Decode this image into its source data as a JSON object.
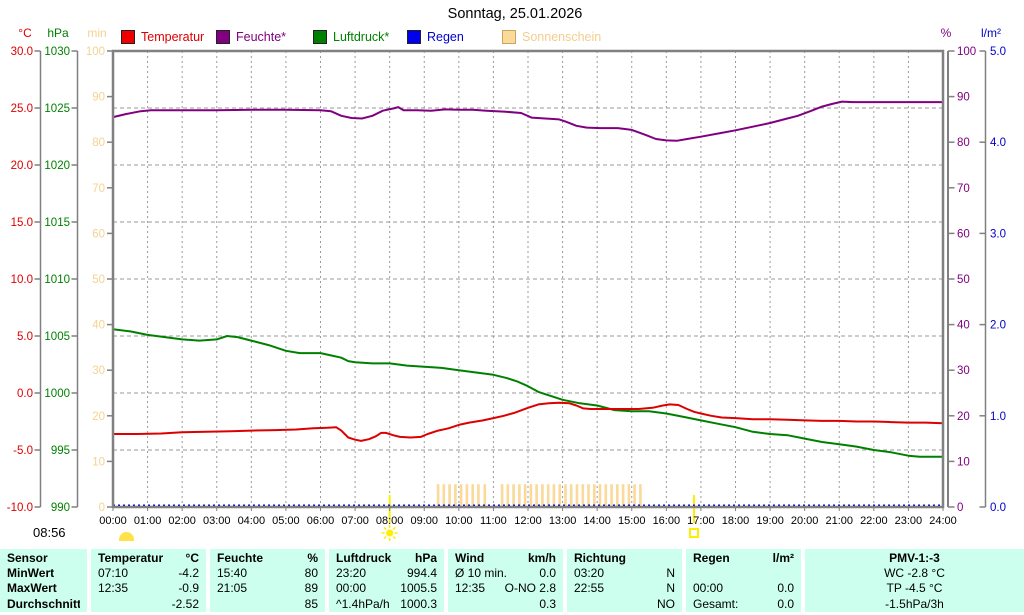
{
  "title": "Sonntag, 25.01.2026",
  "footer_time": "08:56",
  "legend": [
    {
      "label": "Temperatur",
      "text_color": "#dd0000",
      "fill": "#ee0000",
      "border": "#222222"
    },
    {
      "label": "Feuchte*",
      "text_color": "#800080",
      "fill": "#800080",
      "border": "#222222"
    },
    {
      "label": "Luftdruck*",
      "text_color": "#008000",
      "fill": "#008000",
      "border": "#222222"
    },
    {
      "label": "Regen",
      "text_color": "#0000cc",
      "fill": "#0000ee",
      "border": "#222222"
    },
    {
      "label": "Sonnenschein",
      "text_color": "#f3cd8e",
      "fill": "#fbd99b",
      "border": "#caa35c"
    }
  ],
  "chart_data": {
    "type": "line",
    "title": "Sonntag, 25.01.2026",
    "grid": true,
    "x_axis": {
      "label": "time",
      "range_hours": [
        0,
        24
      ],
      "tick_labels": [
        "00:00",
        "01:00",
        "02:00",
        "03:00",
        "04:00",
        "05:00",
        "06:00",
        "07:00",
        "08:00",
        "09:00",
        "10:00",
        "11:00",
        "12:00",
        "13:00",
        "14:00",
        "15:00",
        "16:00",
        "17:00",
        "18:00",
        "19:00",
        "20:00",
        "21:00",
        "22:00",
        "23:00",
        "24:00"
      ]
    },
    "y_axes": {
      "celsius": {
        "label": "°C",
        "color": "#dd0000",
        "min": -10,
        "max": 30,
        "ticks": [
          "30.0",
          "25.0",
          "20.0",
          "15.0",
          "10.0",
          "5.0",
          "0.0",
          "-5.0",
          "-10.0"
        ]
      },
      "hpa": {
        "label": "hPa",
        "color": "#008000",
        "min": 990,
        "max": 1030,
        "ticks": [
          "1030",
          "1025",
          "1020",
          "1015",
          "1010",
          "1005",
          "1000",
          "995",
          "990"
        ]
      },
      "minutes": {
        "label": "min",
        "color": "#f3d391",
        "min": 0,
        "max": 100,
        "ticks": [
          "100",
          "90",
          "80",
          "70",
          "60",
          "50",
          "40",
          "30",
          "20",
          "10",
          "0"
        ]
      },
      "percent": {
        "label": "%",
        "color": "#800080",
        "min": 0,
        "max": 100,
        "ticks": [
          "100",
          "90",
          "80",
          "70",
          "60",
          "50",
          "40",
          "30",
          "20",
          "10",
          "0"
        ]
      },
      "lm2": {
        "label": "l/m²",
        "color": "#0000cc",
        "min": 0,
        "max": 5,
        "ticks": [
          "5.0",
          "4.0",
          "3.0",
          "2.0",
          "1.0",
          "0.0"
        ]
      }
    },
    "series": [
      {
        "name": "Sonnenschein",
        "unit": "min",
        "axis": "minutes",
        "color": "#fbd99b",
        "type": "bars",
        "slot_minutes": 10,
        "bar_minutes": 5,
        "intervals": [
          [
            9.4,
            10.65
          ],
          [
            10.75,
            10.88
          ],
          [
            11.25,
            15.28
          ]
        ]
      },
      {
        "name": "Regen",
        "unit": "l/m²",
        "axis": "lm2",
        "color": "#0000cc",
        "style": "dotted",
        "constant_value": 0
      },
      {
        "name": "Luftdruck*",
        "unit": "hPa",
        "axis": "hpa",
        "color": "#008000",
        "points": [
          [
            0,
            1005.6
          ],
          [
            0.5,
            1005.4
          ],
          [
            1,
            1005.1
          ],
          [
            1.5,
            1004.9
          ],
          [
            2,
            1004.7
          ],
          [
            2.5,
            1004.6
          ],
          [
            3,
            1004.7
          ],
          [
            3.3,
            1005.0
          ],
          [
            3.6,
            1004.9
          ],
          [
            4,
            1004.6
          ],
          [
            4.5,
            1004.2
          ],
          [
            5,
            1003.7
          ],
          [
            5.4,
            1003.5
          ],
          [
            6,
            1003.5
          ],
          [
            6.3,
            1003.3
          ],
          [
            6.6,
            1003.1
          ],
          [
            6.8,
            1002.8
          ],
          [
            7,
            1002.7
          ],
          [
            7.5,
            1002.6
          ],
          [
            8,
            1002.6
          ],
          [
            8.5,
            1002.4
          ],
          [
            9,
            1002.3
          ],
          [
            9.5,
            1002.2
          ],
          [
            10,
            1002.0
          ],
          [
            10.5,
            1001.8
          ],
          [
            11,
            1001.6
          ],
          [
            11.4,
            1001.3
          ],
          [
            11.7,
            1001.0
          ],
          [
            12,
            1000.6
          ],
          [
            12.3,
            1000.1
          ],
          [
            12.6,
            999.8
          ],
          [
            13,
            999.4
          ],
          [
            13.5,
            999.1
          ],
          [
            14,
            998.9
          ],
          [
            14.5,
            998.5
          ],
          [
            15,
            998.4
          ],
          [
            15.5,
            998.4
          ],
          [
            16,
            998.2
          ],
          [
            16.5,
            997.9
          ],
          [
            17,
            997.6
          ],
          [
            17.5,
            997.3
          ],
          [
            18,
            997.0
          ],
          [
            18.5,
            996.6
          ],
          [
            19,
            996.4
          ],
          [
            19.5,
            996.3
          ],
          [
            20,
            996.0
          ],
          [
            20.5,
            995.7
          ],
          [
            21,
            995.5
          ],
          [
            21.5,
            995.3
          ],
          [
            22,
            995.0
          ],
          [
            22.5,
            994.8
          ],
          [
            23,
            994.5
          ],
          [
            23.33,
            994.4
          ],
          [
            24,
            994.4
          ]
        ]
      },
      {
        "name": "Feuchte*",
        "unit": "%",
        "axis": "percent",
        "color": "#800080",
        "points": [
          [
            0,
            85.5
          ],
          [
            0.4,
            86.2
          ],
          [
            0.8,
            86.8
          ],
          [
            1.1,
            87
          ],
          [
            2,
            87
          ],
          [
            3,
            87
          ],
          [
            4,
            87.1
          ],
          [
            5,
            87.1
          ],
          [
            6,
            87
          ],
          [
            6.3,
            86.8
          ],
          [
            6.6,
            85.8
          ],
          [
            6.9,
            85.3
          ],
          [
            7.2,
            85.2
          ],
          [
            7.5,
            85.8
          ],
          [
            7.8,
            86.9
          ],
          [
            8.1,
            87.4
          ],
          [
            8.25,
            87.7
          ],
          [
            8.4,
            87
          ],
          [
            8.8,
            87
          ],
          [
            9.2,
            86.9
          ],
          [
            9.6,
            87.2
          ],
          [
            10,
            87.1
          ],
          [
            10.4,
            87.1
          ],
          [
            10.8,
            86.9
          ],
          [
            11.3,
            86.7
          ],
          [
            11.8,
            86.4
          ],
          [
            12.1,
            85.4
          ],
          [
            12.5,
            85.2
          ],
          [
            12.9,
            85
          ],
          [
            13.1,
            84.5
          ],
          [
            13.4,
            83.6
          ],
          [
            13.7,
            83.2
          ],
          [
            14.1,
            83.1
          ],
          [
            14.6,
            83.1
          ],
          [
            15,
            82.7
          ],
          [
            15.4,
            81.6
          ],
          [
            15.7,
            80.7
          ],
          [
            16,
            80.4
          ],
          [
            16.3,
            80.3
          ],
          [
            16.6,
            80.7
          ],
          [
            17,
            81.2
          ],
          [
            17.5,
            81.9
          ],
          [
            18,
            82.6
          ],
          [
            18.5,
            83.4
          ],
          [
            19,
            84.2
          ],
          [
            19.4,
            85
          ],
          [
            19.8,
            85.8
          ],
          [
            20.2,
            86.9
          ],
          [
            20.5,
            87.8
          ],
          [
            20.8,
            88.4
          ],
          [
            21.08,
            88.9
          ],
          [
            21.4,
            88.8
          ],
          [
            22,
            88.8
          ],
          [
            23,
            88.8
          ],
          [
            24,
            88.8
          ]
        ]
      },
      {
        "name": "Temperatur",
        "unit": "°C",
        "axis": "celsius",
        "color": "#dd0000",
        "points": [
          [
            0,
            -3.6
          ],
          [
            0.7,
            -3.6
          ],
          [
            1.4,
            -3.55
          ],
          [
            2,
            -3.45
          ],
          [
            2.7,
            -3.4
          ],
          [
            3.4,
            -3.35
          ],
          [
            4,
            -3.3
          ],
          [
            4.7,
            -3.25
          ],
          [
            5.3,
            -3.2
          ],
          [
            5.8,
            -3.1
          ],
          [
            6.2,
            -3.05
          ],
          [
            6.45,
            -3.0
          ],
          [
            6.6,
            -3.3
          ],
          [
            6.8,
            -3.9
          ],
          [
            7.0,
            -4.1
          ],
          [
            7.17,
            -4.2
          ],
          [
            7.4,
            -4.05
          ],
          [
            7.6,
            -3.8
          ],
          [
            7.75,
            -3.5
          ],
          [
            7.9,
            -3.5
          ],
          [
            8.1,
            -3.7
          ],
          [
            8.3,
            -3.85
          ],
          [
            8.6,
            -3.9
          ],
          [
            8.9,
            -3.85
          ],
          [
            9.1,
            -3.6
          ],
          [
            9.4,
            -3.3
          ],
          [
            9.7,
            -3.1
          ],
          [
            10,
            -2.8
          ],
          [
            10.3,
            -2.6
          ],
          [
            10.7,
            -2.4
          ],
          [
            11,
            -2.2
          ],
          [
            11.3,
            -2.0
          ],
          [
            11.6,
            -1.75
          ],
          [
            12,
            -1.3
          ],
          [
            12.3,
            -1.0
          ],
          [
            12.6,
            -0.9
          ],
          [
            12.9,
            -0.85
          ],
          [
            13.2,
            -0.9
          ],
          [
            13.4,
            -1.1
          ],
          [
            13.6,
            -1.35
          ],
          [
            13.8,
            -1.4
          ],
          [
            14.2,
            -1.4
          ],
          [
            14.7,
            -1.4
          ],
          [
            15.2,
            -1.4
          ],
          [
            15.6,
            -1.3
          ],
          [
            15.9,
            -1.1
          ],
          [
            16.1,
            -1.0
          ],
          [
            16.35,
            -1.05
          ],
          [
            16.6,
            -1.4
          ],
          [
            16.8,
            -1.65
          ],
          [
            17,
            -1.8
          ],
          [
            17.3,
            -2.0
          ],
          [
            17.6,
            -2.15
          ],
          [
            18,
            -2.2
          ],
          [
            18.5,
            -2.3
          ],
          [
            19,
            -2.3
          ],
          [
            19.5,
            -2.35
          ],
          [
            20,
            -2.4
          ],
          [
            20.5,
            -2.45
          ],
          [
            21,
            -2.45
          ],
          [
            21.5,
            -2.5
          ],
          [
            22,
            -2.5
          ],
          [
            22.5,
            -2.55
          ],
          [
            23,
            -2.6
          ],
          [
            23.5,
            -2.6
          ],
          [
            24,
            -2.65
          ]
        ]
      }
    ],
    "sun_markers": {
      "sunrise_hour": 8.0,
      "sunset_hour": 16.8
    }
  },
  "table": {
    "row_labels": [
      "Sensor",
      "MinWert",
      "MaxWert",
      "Durchschnitt"
    ],
    "columns": [
      {
        "name": "Temperatur",
        "unit": "°C",
        "rows": [
          [
            "07:10",
            "-4.2"
          ],
          [
            "12:35",
            "-0.9"
          ],
          [
            "",
            "-2.52"
          ]
        ]
      },
      {
        "name": "Feuchte",
        "unit": "%",
        "rows": [
          [
            "15:40",
            "80"
          ],
          [
            "21:05",
            "89"
          ],
          [
            "",
            "85"
          ]
        ]
      },
      {
        "name": "Luftdruck",
        "unit": "hPa",
        "rows": [
          [
            "23:20",
            "994.4"
          ],
          [
            "00:00",
            "1005.5"
          ],
          [
            "^1.4hPa/h",
            "1000.3"
          ]
        ]
      },
      {
        "name": "Wind",
        "unit": "km/h",
        "rows": [
          [
            "Ø 10 min.",
            "0.0"
          ],
          [
            "12:35",
            "O-NO 2.8"
          ],
          [
            "",
            "0.3"
          ]
        ]
      },
      {
        "name": "Richtung",
        "unit": "",
        "rows": [
          [
            "03:20",
            "N"
          ],
          [
            "22:55",
            "N"
          ],
          [
            "",
            "NO"
          ]
        ]
      },
      {
        "name": "Regen",
        "unit": "l/m²",
        "rows": [
          [
            "",
            ""
          ],
          [
            "00:00",
            "0.0"
          ],
          [
            "Gesamt:",
            "0.0"
          ]
        ]
      },
      {
        "name": "PMV-1:-3",
        "unit": "",
        "center": true,
        "rows": [
          [
            "",
            "WC -2.8 °C"
          ],
          [
            "",
            "TP -4.5 °C"
          ],
          [
            "",
            "-1.5hPa/3h"
          ]
        ]
      }
    ]
  }
}
